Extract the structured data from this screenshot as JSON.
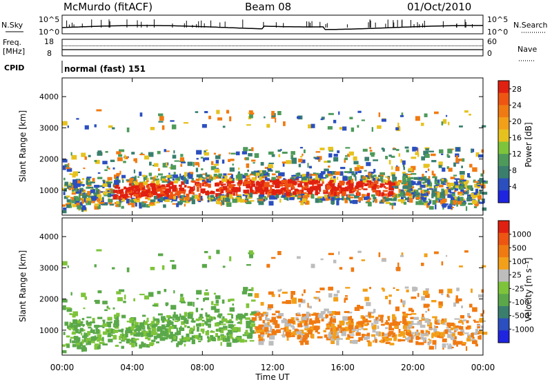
{
  "header": {
    "station": "McMurdo (fitACF)",
    "beam": "Beam 08",
    "date": "01/Oct/2010"
  },
  "top_panels": {
    "nsky_label": "N.Sky",
    "nsky_ticks": [
      "10^5",
      "10^0"
    ],
    "nsearch_label": "N.Search",
    "nsearch_ticks": [
      "10^5",
      "10^0"
    ],
    "freq_label": "Freq.",
    "freq_unit": "[MHz]",
    "freq_ticks": [
      "18",
      "8"
    ],
    "nave_label": "Nave",
    "nave_ticks": [
      "60",
      "0"
    ],
    "cpid_label": "CPID",
    "cpid_value": "normal (fast) 151"
  },
  "colors": {
    "power_scale": [
      "#1f24e0",
      "#2b4fbf",
      "#3a7f6e",
      "#4e9a5a",
      "#7ec43a",
      "#e6c21f",
      "#f2a01a",
      "#f07a12",
      "#ee5512",
      "#e02010"
    ],
    "velocity_scale": [
      "#1f24e0",
      "#2b4fbf",
      "#3a7f6e",
      "#5aa84a",
      "#7ec43a",
      "#bdbdbd",
      "#f2a01a",
      "#f07a12",
      "#ee5512",
      "#e02010"
    ]
  },
  "chart_data": [
    {
      "type": "heatmap",
      "name": "power",
      "ylabel": "Slant Range [km]",
      "xlabel": "Time UT",
      "x_ticks": [
        "00:00",
        "04:00",
        "08:00",
        "12:00",
        "16:00",
        "20:00",
        "00:00"
      ],
      "y_ticks": [
        "1000",
        "2000",
        "3000",
        "4000"
      ],
      "ylim": [
        200,
        4600
      ],
      "colorbar_label": "Power [dB]",
      "colorbar_ticks": [
        "4",
        "8",
        "12",
        "16",
        "20",
        "24",
        "28"
      ]
    },
    {
      "type": "heatmap",
      "name": "velocity",
      "ylabel": "Slant Range [km]",
      "xlabel": "Time UT",
      "x_ticks": [
        "00:00",
        "04:00",
        "08:00",
        "12:00",
        "16:00",
        "20:00",
        "00:00"
      ],
      "y_ticks": [
        "1000",
        "2000",
        "3000",
        "4000"
      ],
      "ylim": [
        200,
        4600
      ],
      "colorbar_label": "Velocity [m s⁻¹]",
      "colorbar_ticks": [
        "1000",
        "500",
        "100",
        "25",
        "-25",
        "-100",
        "-500",
        "-1000"
      ]
    }
  ]
}
